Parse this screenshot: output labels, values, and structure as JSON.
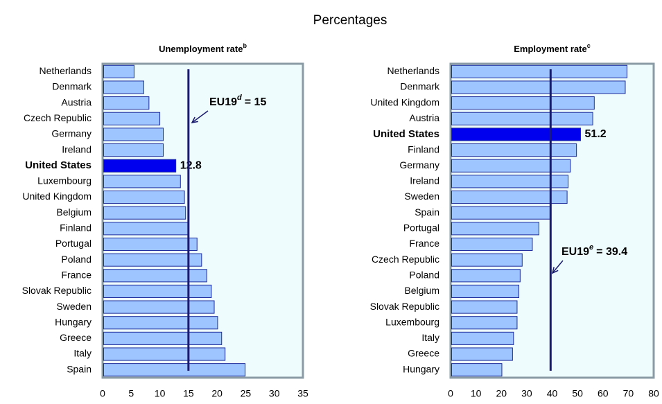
{
  "title": "Percentages",
  "chart_data": [
    {
      "type": "barh",
      "title": "Unemployment rate",
      "title_superscript": "b",
      "categories": [
        "Netherlands",
        "Denmark",
        "Austria",
        "Czech Republic",
        "Germany",
        "Ireland",
        "United States",
        "Luxembourg",
        "United Kingdom",
        "Belgium",
        "Finland",
        "Portugal",
        "Poland",
        "France",
        "Slovak Republic",
        "Sweden",
        "Hungary",
        "Greece",
        "Italy",
        "Spain"
      ],
      "values": [
        5.5,
        7.2,
        8.1,
        10,
        10.6,
        10.6,
        12.8,
        13.6,
        14.3,
        14.5,
        15,
        16.5,
        17.3,
        18.2,
        19,
        19.5,
        20.1,
        20.8,
        21.4,
        24.9
      ],
      "value_labels": [
        null,
        null,
        null,
        null,
        null,
        null,
        "12.8",
        null,
        null,
        null,
        null,
        null,
        null,
        null,
        null,
        null,
        null,
        null,
        null,
        null
      ],
      "colors": [
        "#9ec5ff",
        "#9ec5ff",
        "#9ec5ff",
        "#9ec5ff",
        "#9ec5ff",
        "#9ec5ff",
        "#0000ee",
        "#9ec5ff",
        "#9ec5ff",
        "#9ec5ff",
        "#9ec5ff",
        "#9ec5ff",
        "#9ec5ff",
        "#9ec5ff",
        "#9ec5ff",
        "#9ec5ff",
        "#9ec5ff",
        "#9ec5ff",
        "#9ec5ff",
        "#9ec5ff"
      ],
      "highlight_color": "#0000ee",
      "xlim": [
        0,
        35
      ],
      "xticks": [
        0,
        5,
        10,
        15,
        20,
        25,
        30,
        35
      ],
      "reference_line": {
        "value": 15,
        "label": "EU19",
        "label_superscript": "d",
        "value_label": "= 15",
        "color": "#1a1a6e"
      }
    },
    {
      "type": "barh",
      "title": "Employment rate",
      "title_superscript": "c",
      "categories": [
        "Netherlands",
        "Denmark",
        "United Kingdom",
        "Austria",
        "United States",
        "Finland",
        "Germany",
        "Ireland",
        "Sweden",
        "Spain",
        "Portugal",
        "France",
        "Czech Republic",
        "Poland",
        "Belgium",
        "Slovak Republic",
        "Luxembourg",
        "Italy",
        "Greece",
        "Hungary"
      ],
      "values": [
        69.5,
        68.8,
        56.6,
        56,
        51.2,
        49.6,
        47.2,
        46.3,
        45.9,
        39.3,
        34.8,
        32.2,
        28.2,
        27.4,
        26.9,
        26.2,
        26.2,
        24.8,
        24.4,
        20.2
      ],
      "value_labels": [
        null,
        null,
        null,
        null,
        "51.2",
        null,
        null,
        null,
        null,
        null,
        null,
        null,
        null,
        null,
        null,
        null,
        null,
        null,
        null,
        null
      ],
      "colors": [
        "#9ec5ff",
        "#9ec5ff",
        "#9ec5ff",
        "#9ec5ff",
        "#0000ee",
        "#9ec5ff",
        "#9ec5ff",
        "#9ec5ff",
        "#9ec5ff",
        "#9ec5ff",
        "#9ec5ff",
        "#9ec5ff",
        "#9ec5ff",
        "#9ec5ff",
        "#9ec5ff",
        "#9ec5ff",
        "#9ec5ff",
        "#9ec5ff",
        "#9ec5ff",
        "#9ec5ff"
      ],
      "highlight_color": "#0000ee",
      "xlim": [
        0,
        80
      ],
      "xticks": [
        0,
        10,
        20,
        30,
        40,
        50,
        60,
        70,
        80
      ],
      "reference_line": {
        "value": 39.4,
        "label": "EU19",
        "label_superscript": "e",
        "value_label": "= 39.4",
        "color": "#1a1a6e"
      }
    }
  ]
}
